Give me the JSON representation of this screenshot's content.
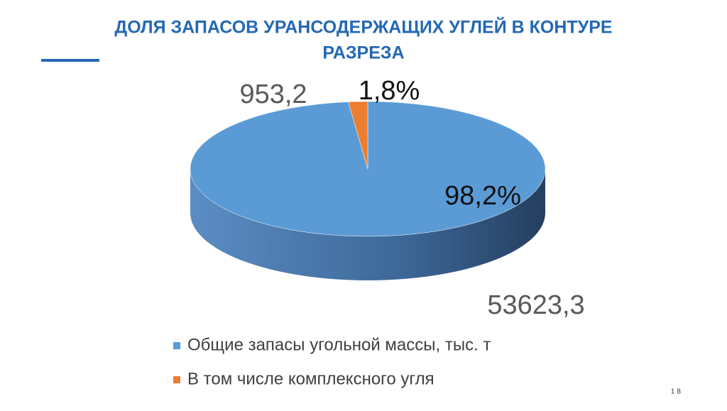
{
  "chart_data": {
    "type": "pie3d",
    "title": "ДОЛЯ ЗАПАСОВ УРАНСОДЕРЖАЩИХ УГЛЕЙ В КОНТУРЕ",
    "subtitle": "РАЗРЕЗА",
    "categories": [
      "Общие запасы угольной массы, тыс. т",
      "В том числе комплексного угля"
    ],
    "values": [
      53623.3,
      953.2
    ],
    "value_labels": [
      "53623,3",
      "953,2"
    ],
    "percent_values": [
      98.2,
      1.8
    ],
    "percent_labels": [
      "98,2%",
      "1,8%"
    ],
    "colors": [
      "#5b9bd5",
      "#ed7d31"
    ],
    "legend": "bottom"
  },
  "slide_number": "18"
}
